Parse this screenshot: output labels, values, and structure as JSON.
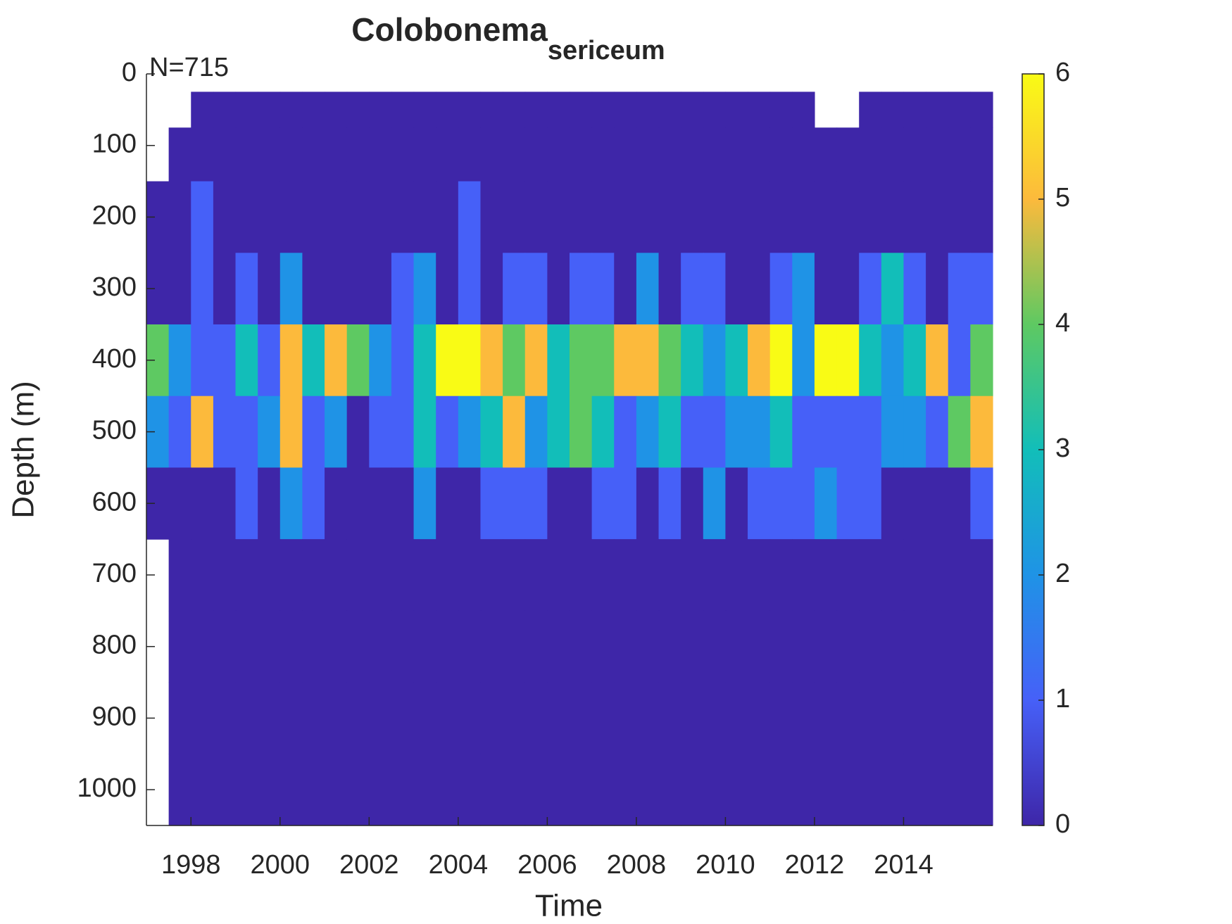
{
  "chart_data": {
    "type": "heatmap",
    "title": "Colobonema",
    "title_subscript": "sericeum",
    "annotation": "N=715",
    "xlabel": "Time",
    "ylabel": "Depth (m)",
    "xbins": [
      1997,
      1997.5,
      1998,
      1998.5,
      1999,
      1999.5,
      2000,
      2000.5,
      2001,
      2001.5,
      2002,
      2002.5,
      2003,
      2003.5,
      2004,
      2004.5,
      2005,
      2005.5,
      2006,
      2006.5,
      2007,
      2007.5,
      2008,
      2008.5,
      2009,
      2009.5,
      2010,
      2010.5,
      2011,
      2011.5,
      2012,
      2012.5,
      2013,
      2013.5,
      2014,
      2014.5,
      2015,
      2015.5,
      2016
    ],
    "ybins": [
      25,
      75,
      150,
      250,
      350,
      450,
      550,
      650,
      750,
      850,
      950,
      1050
    ],
    "z": [
      [
        null,
        null,
        0,
        0,
        0,
        0,
        0,
        0,
        0,
        0,
        0,
        0,
        0,
        0,
        0,
        0,
        0,
        0,
        0,
        0,
        0,
        0,
        0,
        0,
        0,
        0,
        0,
        0,
        0,
        0,
        null,
        null,
        0,
        0,
        0,
        0,
        0,
        0
      ],
      [
        null,
        0,
        0,
        0,
        0,
        0,
        0,
        0,
        0,
        0,
        0,
        0,
        0,
        0,
        0,
        0,
        0,
        0,
        0,
        0,
        0,
        0,
        0,
        0,
        0,
        0,
        0,
        0,
        0,
        0,
        0,
        0,
        0,
        0,
        0,
        0,
        0,
        0
      ],
      [
        0,
        0,
        1,
        0,
        0,
        0,
        0,
        0,
        0,
        0,
        0,
        0,
        0,
        0,
        1,
        0,
        0,
        0,
        0,
        0,
        0,
        0,
        0,
        0,
        0,
        0,
        0,
        0,
        0,
        0,
        0,
        0,
        0,
        0,
        0,
        0,
        0,
        0
      ],
      [
        0,
        0,
        1,
        0,
        1,
        0,
        2,
        0,
        0,
        0,
        0,
        1,
        2,
        0,
        1,
        0,
        1,
        1,
        0,
        1,
        1,
        0,
        2,
        0,
        1,
        1,
        0,
        0,
        1,
        2,
        0,
        0,
        1,
        3,
        1,
        0,
        1,
        1
      ],
      [
        4,
        2,
        1,
        1,
        3,
        1,
        5,
        3,
        5,
        4,
        2,
        1,
        3,
        6,
        6,
        5,
        4,
        5,
        3,
        4,
        4,
        5,
        5,
        4,
        3,
        2,
        3,
        5,
        6,
        2,
        6,
        6,
        3,
        2,
        3,
        5,
        1,
        4
      ],
      [
        2,
        1,
        5,
        1,
        1,
        2,
        5,
        1,
        2,
        0,
        1,
        1,
        3,
        1,
        2,
        3,
        5,
        2,
        3,
        4,
        3,
        1,
        2,
        3,
        1,
        1,
        2,
        2,
        3,
        1,
        1,
        1,
        1,
        2,
        2,
        1,
        4,
        5
      ],
      [
        0,
        0,
        0,
        0,
        1,
        0,
        2,
        1,
        0,
        0,
        0,
        0,
        2,
        0,
        0,
        1,
        1,
        1,
        0,
        0,
        1,
        1,
        0,
        1,
        0,
        2,
        0,
        1,
        1,
        1,
        2,
        1,
        1,
        0,
        0,
        0,
        0,
        1
      ],
      [
        null,
        0,
        0,
        0,
        0,
        0,
        0,
        0,
        0,
        0,
        0,
        0,
        0,
        0,
        0,
        0,
        0,
        0,
        0,
        0,
        0,
        0,
        0,
        0,
        0,
        0,
        0,
        0,
        0,
        0,
        0,
        0,
        0,
        0,
        0,
        0,
        0,
        0
      ],
      [
        null,
        0,
        0,
        0,
        0,
        0,
        0,
        0,
        0,
        0,
        0,
        0,
        0,
        0,
        0,
        0,
        0,
        0,
        0,
        0,
        0,
        0,
        0,
        0,
        0,
        0,
        0,
        0,
        0,
        0,
        0,
        0,
        0,
        0,
        0,
        0,
        0,
        0
      ],
      [
        null,
        0,
        0,
        0,
        0,
        0,
        0,
        0,
        0,
        0,
        0,
        0,
        0,
        0,
        0,
        0,
        0,
        0,
        0,
        0,
        0,
        0,
        0,
        0,
        0,
        0,
        0,
        0,
        0,
        0,
        0,
        0,
        0,
        0,
        0,
        0,
        0,
        0
      ],
      [
        null,
        0,
        0,
        0,
        0,
        0,
        0,
        0,
        0,
        0,
        0,
        0,
        0,
        0,
        0,
        0,
        0,
        0,
        0,
        0,
        0,
        0,
        0,
        0,
        0,
        0,
        0,
        0,
        0,
        0,
        0,
        0,
        0,
        0,
        0,
        0,
        0,
        0
      ]
    ],
    "xlim": [
      1997,
      2016
    ],
    "xticks": [
      1998,
      2000,
      2002,
      2004,
      2006,
      2008,
      2010,
      2012,
      2014
    ],
    "ylim": [
      0,
      1050
    ],
    "yticks": [
      0,
      100,
      200,
      300,
      400,
      500,
      600,
      700,
      800,
      900,
      1000
    ],
    "y_reversed": true,
    "clim": [
      0,
      6
    ],
    "cticks": [
      0,
      1,
      2,
      3,
      4,
      5,
      6
    ],
    "colormap": [
      "#3e26a8",
      "#4660f8",
      "#1f93e6",
      "#12beb9",
      "#5ec962",
      "#fcba3c",
      "#f9fb15"
    ]
  }
}
